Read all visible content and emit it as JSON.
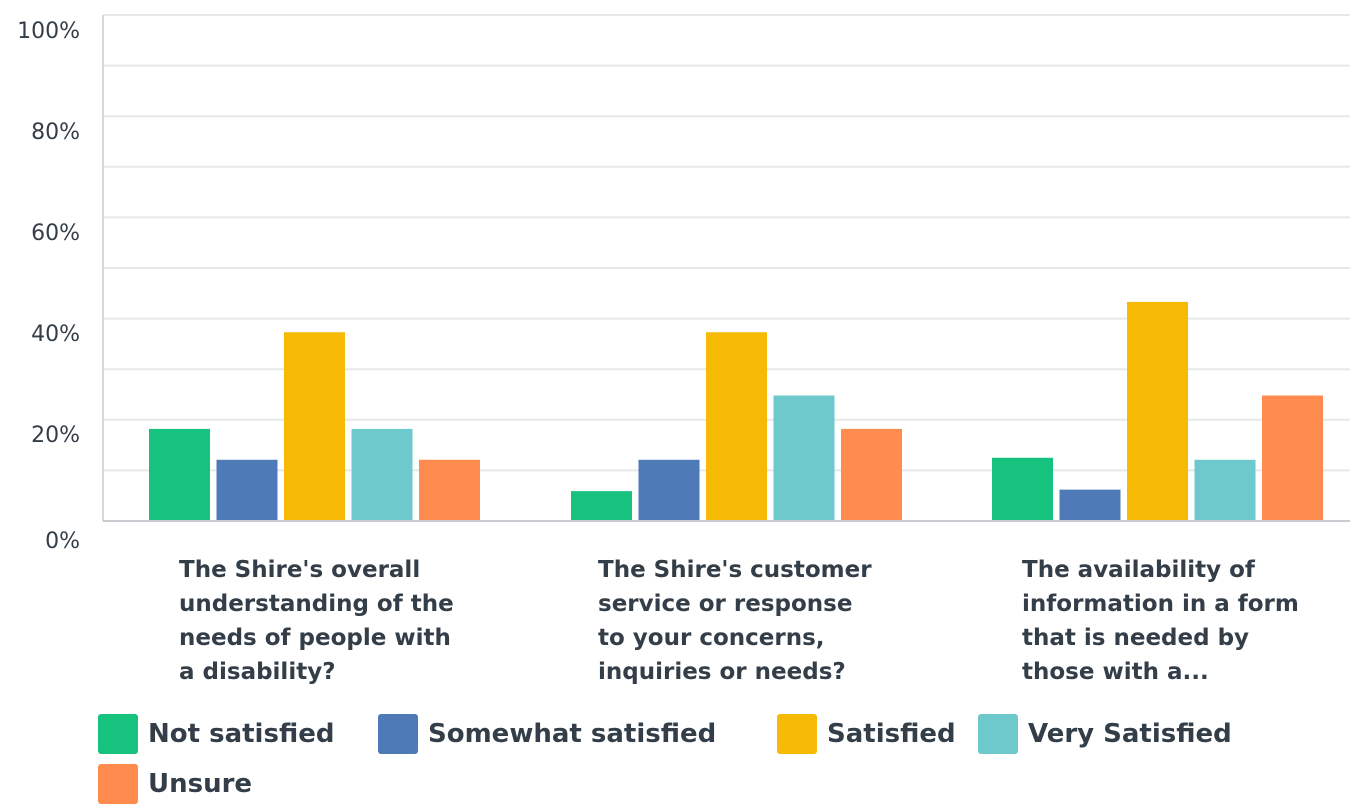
{
  "chart_data": {
    "type": "bar",
    "title": "",
    "xlabel": "",
    "ylabel": "",
    "ylim": [
      0,
      100
    ],
    "yticks": [
      "0%",
      "20%",
      "40%",
      "60%",
      "80%",
      "100%"
    ],
    "grid": true,
    "legend_position": "bottom",
    "categories": [
      "The Shire's overall\nunderstanding of the\nneeds of people with\na disability?",
      "The Shire's customer\nservice or response\nto your concerns,\ninquiries or needs?",
      "The availability of\ninformation in a form\nthat is needed by\nthose with a..."
    ],
    "series": [
      {
        "name": "Not satisfied",
        "color": "#17c27e",
        "values": [
          18.2,
          5.9,
          12.5
        ]
      },
      {
        "name": "Somewhat satisfied",
        "color": "#4e7ab8",
        "values": [
          12.1,
          12.1,
          6.2
        ]
      },
      {
        "name": "Satisfied",
        "color": "#f6ba05",
        "values": [
          37.3,
          37.3,
          43.3
        ]
      },
      {
        "name": "Very Satisfied",
        "color": "#6ec9cc",
        "values": [
          18.2,
          24.8,
          12.1
        ]
      },
      {
        "name": "Unsure",
        "color": "#ff8b4f",
        "values": [
          12.1,
          18.2,
          24.8
        ]
      }
    ]
  }
}
